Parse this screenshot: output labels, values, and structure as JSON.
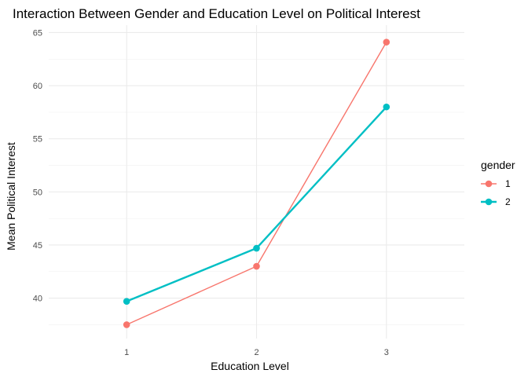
{
  "chart_data": {
    "type": "line",
    "title": "Interaction Between Gender and Education Level on Political Interest",
    "xlabel": "Education Level",
    "ylabel": "Mean Political Interest",
    "categories": [
      "1",
      "2",
      "3"
    ],
    "ylim": [
      36.2,
      65.7
    ],
    "yticks": [
      40,
      45,
      50,
      55,
      60,
      65
    ],
    "grid": true,
    "legend": {
      "title": "gender",
      "placement": "right"
    },
    "series": [
      {
        "name": "1",
        "color": "#F8766D",
        "values": [
          37.5,
          43.0,
          64.1
        ]
      },
      {
        "name": "2",
        "color": "#00BFC4",
        "values": [
          39.7,
          44.7,
          58.0
        ]
      }
    ]
  }
}
